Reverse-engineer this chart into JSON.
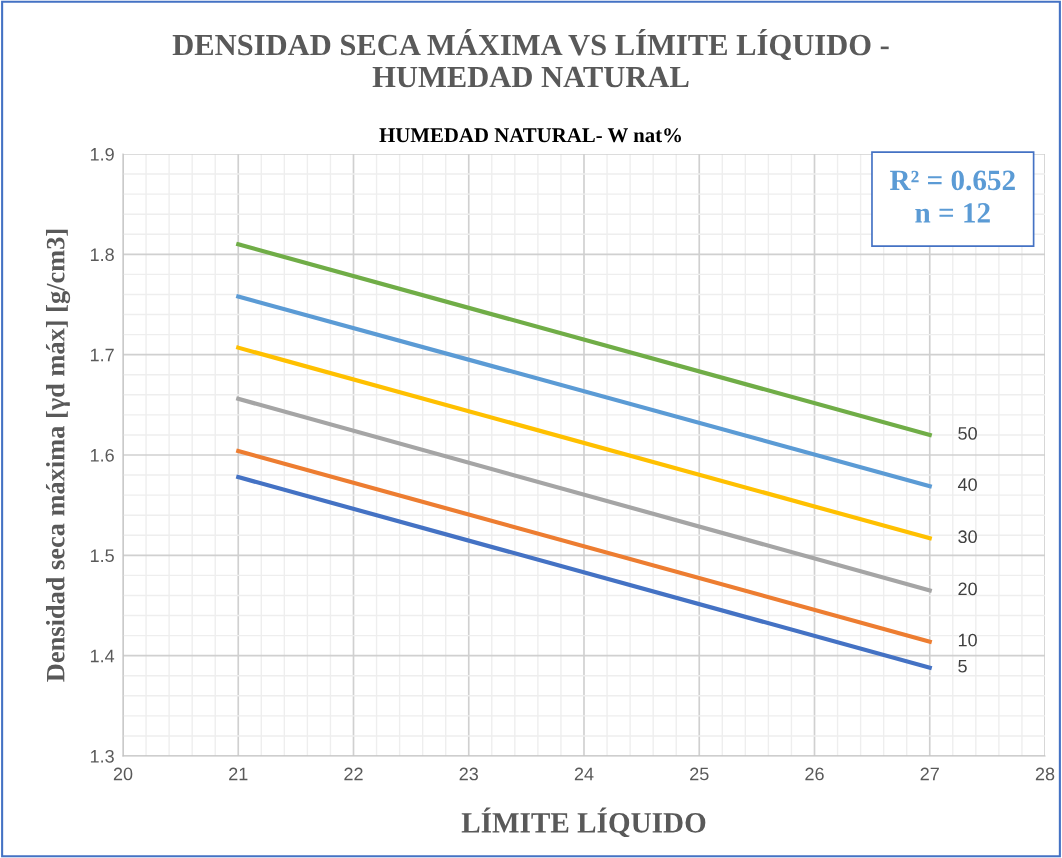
{
  "chart_data": {
    "type": "line",
    "title": "DENSIDAD SECA MÁXIMA VS LÍMITE LÍQUIDO -\nHUMEDAD NATURAL",
    "subtitle": "HUMEDAD NATURAL- W nat%",
    "xlabel": "LÍMITE LÍQUIDO",
    "ylabel": "Densidad seca máxima [γd máx] [g/cm3]",
    "x": [
      21,
      27
    ],
    "series": [
      {
        "name": "50",
        "color": "#70ad47",
        "values": [
          1.81,
          1.62
        ]
      },
      {
        "name": "40",
        "color": "#5b9bd5",
        "values": [
          1.758,
          1.569
        ]
      },
      {
        "name": "30",
        "color": "#ffc000",
        "values": [
          1.707,
          1.517
        ]
      },
      {
        "name": "20",
        "color": "#a5a5a5",
        "values": [
          1.656,
          1.465
        ]
      },
      {
        "name": "10",
        "color": "#ed7d31",
        "values": [
          1.604,
          1.414
        ]
      },
      {
        "name": "5",
        "color": "#4472c4",
        "values": [
          1.578,
          1.388
        ]
      }
    ],
    "xlim": [
      20,
      28
    ],
    "xticks": [
      20,
      21,
      22,
      23,
      24,
      25,
      26,
      27,
      28
    ],
    "ylim": [
      1.3,
      1.9
    ],
    "yticks": [
      1.3,
      1.4,
      1.5,
      1.6,
      1.7,
      1.8,
      1.9
    ],
    "grid": true,
    "legend": false,
    "marker": "none",
    "line_style": "solid",
    "annotations": [
      "R² = 0.652\nn = 12"
    ]
  }
}
